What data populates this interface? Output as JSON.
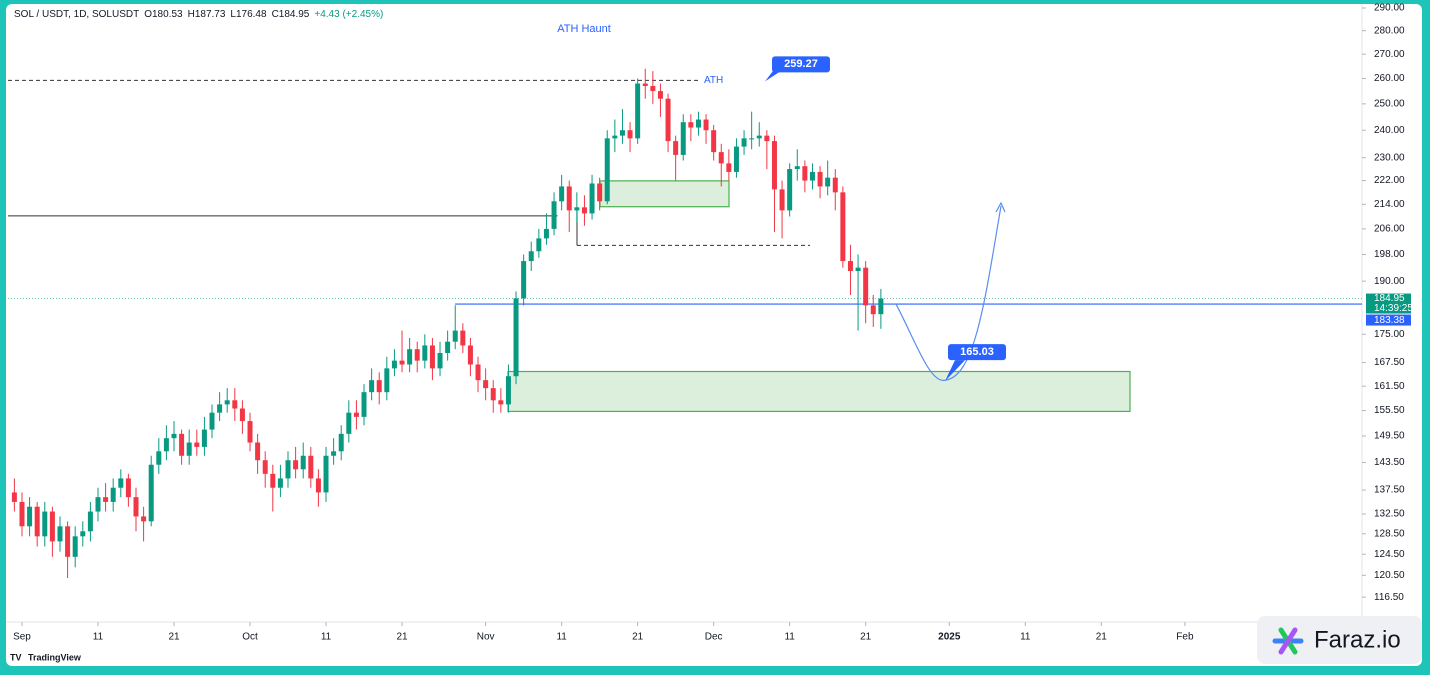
{
  "chart_data": {
    "type": "candlestick",
    "title": "SOL / USDT, 1D, SOLUSDT",
    "ohlc_header": [
      "O180.53",
      "H187.73",
      "L176.48",
      "C184.95",
      "+4.43 (+2.45%)"
    ],
    "x": [
      -1,
      0,
      1,
      2,
      3,
      4,
      5,
      6,
      7,
      8,
      9,
      10,
      11,
      12,
      13,
      14,
      15,
      16,
      17,
      18,
      19,
      20,
      21,
      22,
      23,
      24,
      25,
      26,
      27,
      28,
      29,
      30,
      31,
      32,
      33,
      34,
      35,
      36,
      37,
      38,
      39,
      40,
      41,
      42,
      43,
      44,
      45,
      46,
      47,
      48,
      49,
      50,
      51,
      52,
      53,
      54,
      55,
      56,
      57,
      58,
      59,
      60,
      61,
      62,
      63,
      64,
      65,
      66,
      67,
      68,
      69,
      70,
      71,
      72,
      73,
      74,
      75,
      76,
      77,
      78,
      79,
      80,
      81,
      82,
      83,
      84,
      85,
      86,
      87,
      88,
      89,
      90,
      91,
      92,
      93,
      94,
      95,
      96,
      97,
      98,
      99,
      100,
      101,
      102,
      103,
      104,
      105,
      106,
      107,
      108,
      109,
      110,
      111,
      112,
      113
    ],
    "open": [
      137,
      135,
      130,
      134,
      128,
      133,
      127,
      130,
      124,
      128,
      129,
      133,
      136,
      135,
      138,
      140,
      136,
      132,
      131,
      143,
      146,
      149,
      150,
      145,
      148,
      147,
      151,
      155,
      157,
      158,
      156,
      153,
      148,
      144,
      141,
      138,
      140,
      144,
      142,
      145,
      140,
      137,
      145,
      146,
      150,
      155,
      154,
      160,
      163,
      160,
      166,
      168,
      167,
      171,
      168,
      172,
      166,
      170,
      173,
      176,
      172,
      167,
      163,
      161,
      158,
      157,
      164,
      185,
      196,
      199,
      203,
      206,
      215,
      220,
      212,
      213,
      211,
      221,
      215,
      237,
      238,
      240,
      237,
      258,
      257,
      255,
      252,
      236,
      231,
      243,
      241,
      244,
      240,
      232,
      228,
      225,
      234,
      237,
      237,
      238,
      236,
      219,
      212,
      226,
      227,
      222,
      225,
      220,
      223,
      218,
      196,
      193,
      194,
      183,
      180.53
    ],
    "high": [
      140,
      137,
      136,
      135,
      135,
      134,
      132,
      131,
      130,
      131,
      135,
      138,
      139,
      140,
      142,
      141,
      138,
      134,
      145,
      149,
      152,
      153,
      151,
      151,
      151,
      154,
      157,
      160,
      161,
      161,
      158,
      155,
      150,
      146,
      143,
      143,
      146,
      147,
      148,
      147,
      142,
      147,
      149,
      152,
      158,
      158,
      162,
      166,
      165,
      169,
      171,
      176,
      174,
      173,
      175,
      174,
      173,
      176,
      183,
      178,
      174,
      169,
      166,
      163,
      161,
      167,
      187,
      198,
      202,
      206,
      211,
      218,
      224,
      222,
      218,
      217,
      224,
      223,
      240,
      244,
      248,
      243,
      260,
      264,
      263,
      258,
      254,
      238,
      246,
      246,
      247,
      246,
      242,
      235,
      233,
      237,
      240,
      247,
      243,
      240,
      238,
      222,
      228,
      233,
      229,
      228,
      227,
      229,
      226,
      220,
      201,
      198,
      196,
      186,
      187.73
    ],
    "low": [
      133,
      128,
      128,
      126,
      126,
      124,
      125,
      120,
      122,
      126,
      127,
      131,
      133,
      133,
      136,
      134,
      129,
      127,
      130,
      141,
      144,
      146,
      143,
      143,
      145,
      145,
      149,
      153,
      155,
      153,
      150,
      146,
      141,
      138,
      133,
      136,
      138,
      140,
      140,
      138,
      134,
      135,
      143,
      144,
      148,
      151,
      152,
      158,
      157,
      158,
      164,
      165,
      165,
      165,
      166,
      163,
      164,
      168,
      171,
      170,
      164,
      160,
      158,
      155,
      155,
      155,
      162,
      183,
      193,
      197,
      201,
      204,
      212,
      205,
      208,
      207,
      209,
      212,
      214,
      232,
      235,
      232,
      235,
      252,
      250,
      245,
      232,
      222,
      229,
      236,
      238,
      235,
      229,
      220,
      222,
      223,
      231,
      233,
      234,
      226,
      205,
      203,
      210,
      222,
      218,
      219,
      216,
      217,
      212,
      194,
      186,
      176,
      178,
      177,
      176.48
    ],
    "close": [
      135,
      130,
      134,
      128,
      133,
      127,
      130,
      124,
      128,
      129,
      133,
      136,
      135,
      138,
      140,
      136,
      132,
      131,
      143,
      146,
      149,
      150,
      145,
      148,
      147,
      151,
      155,
      157,
      158,
      156,
      153,
      148,
      144,
      141,
      138,
      140,
      144,
      142,
      145,
      140,
      137,
      145,
      146,
      150,
      155,
      154,
      160,
      163,
      160,
      166,
      168,
      167,
      171,
      168,
      172,
      166,
      170,
      173,
      176,
      172,
      167,
      163,
      161,
      158,
      157,
      164,
      185,
      196,
      199,
      203,
      206,
      215,
      220,
      212,
      213,
      211,
      221,
      215,
      237,
      238,
      240,
      237,
      258,
      257,
      255,
      252,
      236,
      231,
      243,
      241,
      244,
      240,
      232,
      228,
      225,
      234,
      237,
      237,
      238,
      236,
      219,
      212,
      226,
      227,
      222,
      225,
      220,
      223,
      218,
      196,
      193,
      194,
      183,
      180.52,
      184.95
    ],
    "up_color": "#089981",
    "down_color": "#f23645",
    "xlim": [
      -1.84,
      176.3
    ],
    "xticks": [
      {
        "value": 0,
        "label": "Sep"
      },
      {
        "value": 10,
        "label": "11"
      },
      {
        "value": 20,
        "label": "21"
      },
      {
        "value": 30,
        "label": "Oct"
      },
      {
        "value": 40,
        "label": "11"
      },
      {
        "value": 50,
        "label": "21"
      },
      {
        "value": 61,
        "label": "Nov"
      },
      {
        "value": 71,
        "label": "11"
      },
      {
        "value": 81,
        "label": "21"
      },
      {
        "value": 91,
        "label": "Dec"
      },
      {
        "value": 101,
        "label": "11"
      },
      {
        "value": 111,
        "label": "21"
      },
      {
        "value": 122,
        "label": "2025"
      },
      {
        "value": 132,
        "label": "11"
      },
      {
        "value": 142,
        "label": "21"
      },
      {
        "value": 153,
        "label": "Feb"
      }
    ],
    "ylim": [
      112.1,
      293.6
    ],
    "log_y": true,
    "grid": false,
    "yticks": [
      {
        "value": 290,
        "label": "290.00"
      },
      {
        "value": 280,
        "label": "280.00"
      },
      {
        "value": 270,
        "label": "270.00"
      },
      {
        "value": 260,
        "label": "260.00"
      },
      {
        "value": 250,
        "label": "250.00"
      },
      {
        "value": 240,
        "label": "240.00"
      },
      {
        "value": 230,
        "label": "230.00"
      },
      {
        "value": 222,
        "label": "222.00"
      },
      {
        "value": 214,
        "label": "214.00"
      },
      {
        "value": 206,
        "label": "206.00"
      },
      {
        "value": 198,
        "label": "198.00"
      },
      {
        "value": 190,
        "label": "190.00"
      },
      {
        "value": 175,
        "label": "175.00"
      },
      {
        "value": 167.5,
        "label": "167.50"
      },
      {
        "value": 161.5,
        "label": "161.50"
      },
      {
        "value": 155.5,
        "label": "155.50"
      },
      {
        "value": 149.5,
        "label": "149.50"
      },
      {
        "value": 143.5,
        "label": "143.50"
      },
      {
        "value": 137.5,
        "label": "137.50"
      },
      {
        "value": 132.5,
        "label": "132.50"
      },
      {
        "value": 128.5,
        "label": "128.50"
      },
      {
        "value": 124.5,
        "label": "124.50"
      },
      {
        "value": 120.5,
        "label": "120.50"
      },
      {
        "value": 116.5,
        "label": "116.50"
      }
    ],
    "annotation": "ATH Haunt",
    "ath": {
      "label": "ATH",
      "value": 259.27,
      "value_label": "259.27"
    },
    "target": {
      "value": 165.03,
      "value_label": "165.03"
    },
    "last_price": {
      "value": 184.95,
      "value_label": "184.95",
      "countdown": "14:39:25",
      "color": "#089981"
    },
    "support": {
      "value": 183.38,
      "value_label": "183.38",
      "color": "#2962ff"
    },
    "arrow_level": 210.2,
    "dashed_level": 200.8,
    "zones": [
      {
        "y": [
          213.2,
          221.9
        ]
      },
      {
        "y": [
          155.3,
          165.2
        ]
      }
    ],
    "zone_color": "#4caf50"
  },
  "footer": {
    "brand": "TradingView",
    "watermark": "Faraz.io"
  }
}
